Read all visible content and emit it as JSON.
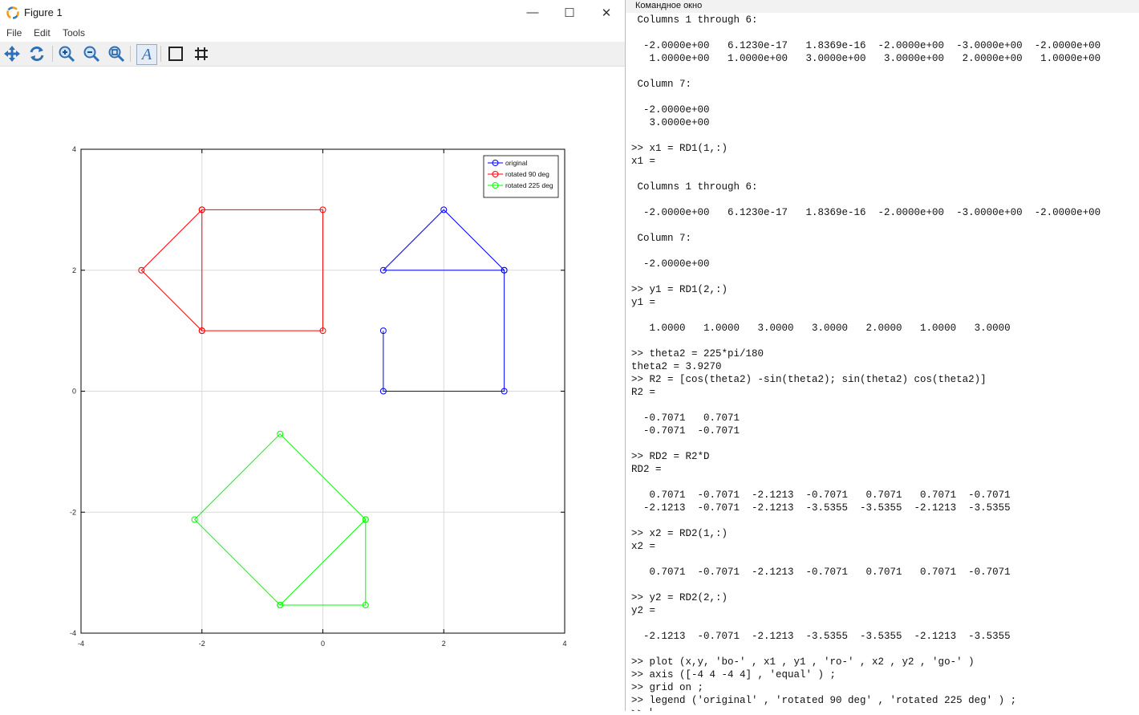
{
  "figure": {
    "title": "Figure 1",
    "window_buttons": {
      "minimize": "—",
      "maximize": "☐",
      "close": "✕"
    },
    "menu": [
      "File",
      "Edit",
      "Tools"
    ],
    "toolbar_icons": [
      "pan-icon",
      "rotate-icon",
      "zoom-in-icon",
      "zoom-out-icon",
      "zoom-reset-icon",
      "text-insert-icon",
      "axes-box-icon",
      "grid-icon"
    ],
    "toolbar_text_glyph": "A"
  },
  "chart_data": {
    "type": "line",
    "title": "",
    "xlabel": "",
    "ylabel": "",
    "xlim": [
      -4,
      4
    ],
    "ylim": [
      -4,
      4
    ],
    "xticks": [
      -4,
      -2,
      0,
      2,
      4
    ],
    "yticks": [
      -4,
      -2,
      0,
      2,
      4
    ],
    "xtick_labels": [
      "-4",
      "-2",
      "0",
      "2",
      "4"
    ],
    "ytick_labels": [
      "-4",
      "-2",
      "0",
      "2",
      "4"
    ],
    "grid": true,
    "legend_position": "top-right",
    "series": [
      {
        "name": "original",
        "color": "#0000ff",
        "marker": "o",
        "x": [
          1,
          1,
          3,
          3,
          2,
          1,
          3
        ],
        "y": [
          1,
          0,
          0,
          2,
          3,
          2,
          2
        ]
      },
      {
        "name": "rotated 90 deg",
        "color": "#ff0000",
        "marker": "o",
        "x": [
          -2.0,
          0.0,
          0.0,
          -2.0,
          -3.0,
          -2.0,
          -2.0
        ],
        "y": [
          1,
          1,
          3,
          3,
          2,
          1,
          3
        ]
      },
      {
        "name": "rotated 225 deg",
        "color": "#00ff00",
        "marker": "o",
        "x": [
          0.7071,
          -0.7071,
          -2.1213,
          -0.7071,
          0.7071,
          0.7071,
          -0.7071
        ],
        "y": [
          -2.1213,
          -0.7071,
          -2.1213,
          -3.5355,
          -3.5355,
          -2.1213,
          -3.5355
        ]
      }
    ]
  },
  "command_window": {
    "title": "Командное окно",
    "lines": [
      " Columns 1 through 6:",
      "",
      "  -2.0000e+00   6.1230e-17   1.8369e-16  -2.0000e+00  -3.0000e+00  -2.0000e+00",
      "   1.0000e+00   1.0000e+00   3.0000e+00   3.0000e+00   2.0000e+00   1.0000e+00",
      "",
      " Column 7:",
      "",
      "  -2.0000e+00",
      "   3.0000e+00",
      "",
      ">> x1 = RD1(1,:)",
      "x1 =",
      "",
      " Columns 1 through 6:",
      "",
      "  -2.0000e+00   6.1230e-17   1.8369e-16  -2.0000e+00  -3.0000e+00  -2.0000e+00",
      "",
      " Column 7:",
      "",
      "  -2.0000e+00",
      "",
      ">> y1 = RD1(2,:)",
      "y1 =",
      "",
      "   1.0000   1.0000   3.0000   3.0000   2.0000   1.0000   3.0000",
      "",
      ">> theta2 = 225*pi/180",
      "theta2 = 3.9270",
      ">> R2 = [cos(theta2) -sin(theta2); sin(theta2) cos(theta2)]",
      "R2 =",
      "",
      "  -0.7071   0.7071",
      "  -0.7071  -0.7071",
      "",
      ">> RD2 = R2*D",
      "RD2 =",
      "",
      "   0.7071  -0.7071  -2.1213  -0.7071   0.7071   0.7071  -0.7071",
      "  -2.1213  -0.7071  -2.1213  -3.5355  -3.5355  -2.1213  -3.5355",
      "",
      ">> x2 = RD2(1,:)",
      "x2 =",
      "",
      "   0.7071  -0.7071  -2.1213  -0.7071   0.7071   0.7071  -0.7071",
      "",
      ">> y2 = RD2(2,:)",
      "y2 =",
      "",
      "  -2.1213  -0.7071  -2.1213  -3.5355  -3.5355  -2.1213  -3.5355",
      "",
      ">> plot (x,y, 'bo-' , x1 , y1 , 'ro-' , x2 , y2 , 'go-' )",
      ">> axis ([-4 4 -4 4] , 'equal' ) ;",
      ">> grid on ;",
      ">> legend ('original' , 'rotated 90 deg' , 'rotated 225 deg' ) ;",
      ">> "
    ]
  }
}
